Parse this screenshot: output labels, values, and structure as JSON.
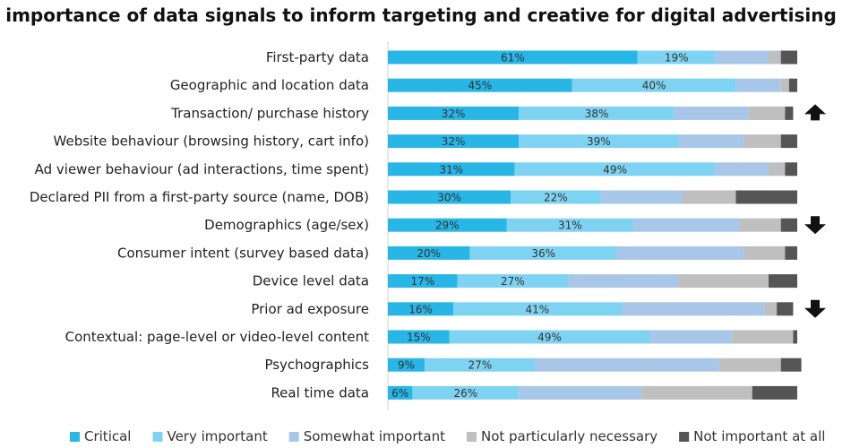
{
  "chart_data": {
    "type": "bar",
    "orientation": "horizontal",
    "stacked": true,
    "title": "importance of data signals to inform targeting and creative for digital advertising",
    "xlabel": "",
    "ylabel": "",
    "xlim": [
      0,
      100
    ],
    "unit": "%",
    "categories": [
      "First-party data",
      "Geographic and location data",
      "Transaction/ purchase history",
      "Website behaviour (browsing history, cart info)",
      "Ad viewer behaviour (ad interactions, time spent)",
      "Declared PII from a first-party source (name, DOB)",
      "Demographics (age/sex)",
      "Consumer intent (survey based data)",
      "Device level data",
      "Prior ad exposure",
      "Contextual: page-level or video-level content",
      "Psychographics",
      "Real time data"
    ],
    "series": [
      {
        "name": "Critical",
        "color": "#27b6e6",
        "values": [
          61,
          45,
          32,
          32,
          31,
          30,
          29,
          20,
          17,
          16,
          15,
          9,
          6
        ]
      },
      {
        "name": "Very important",
        "color": "#7fd3f2",
        "values": [
          19,
          40,
          38,
          39,
          49,
          22,
          31,
          36,
          27,
          41,
          49,
          27,
          26
        ]
      },
      {
        "name": "Somewhat important",
        "color": "#a8c6e8",
        "values": [
          13,
          11,
          18,
          16,
          13,
          20,
          26,
          31,
          27,
          35,
          20,
          45,
          30
        ]
      },
      {
        "name": "Not particularly necessary",
        "color": "#bfbfbf",
        "values": [
          3,
          2,
          9,
          9,
          4,
          13,
          10,
          10,
          22,
          3,
          15,
          15,
          27
        ]
      },
      {
        "name": "Not important at all",
        "color": "#555555",
        "values": [
          4,
          2,
          2,
          4,
          3,
          15,
          4,
          3,
          7,
          4,
          1,
          5,
          11
        ]
      }
    ],
    "labeled_series": [
      "Critical",
      "Very important"
    ],
    "trend_arrows": [
      {
        "category": "Transaction/ purchase history",
        "direction": "up"
      },
      {
        "category": "Demographics (age/sex)",
        "direction": "down"
      },
      {
        "category": "Prior ad exposure",
        "direction": "down"
      }
    ],
    "legend_position": "bottom",
    "grid": false
  }
}
